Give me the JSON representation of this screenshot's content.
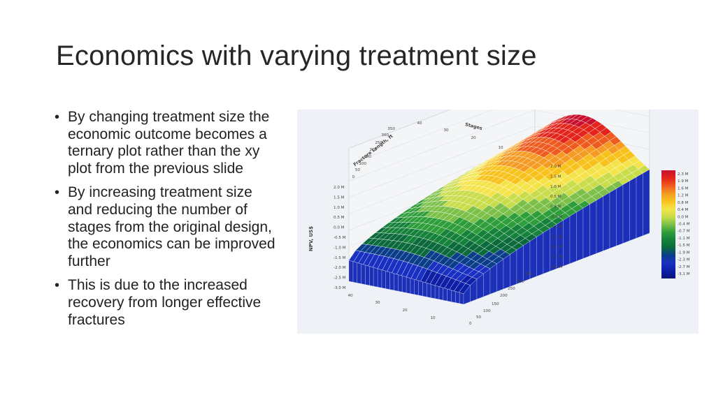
{
  "slide": {
    "title": "Economics with varying treatment size",
    "bullets": [
      "By changing treatment size the economic outcome becomes a ternary plot rather than the xy plot from the previous slide",
      "By increasing treatment size and reducing the number of stages from the original design, the economics can be improved further",
      "This is due to the increased recovery from longer effective fractures"
    ]
  },
  "chart_data": {
    "type": "surface-3d",
    "axes": {
      "stages": {
        "label": "Stages",
        "ticks": [
          "40",
          "30",
          "20",
          "10"
        ]
      },
      "fracture_length": {
        "label": "Fracture Length, ft",
        "ticks": [
          "0",
          "50",
          "100",
          "150",
          "200",
          "250",
          "300",
          "350"
        ]
      },
      "npv": {
        "label": "NPV, US$",
        "ticks": [
          "2.0 M",
          "1.5 M",
          "1.0 M",
          "0.5 M",
          "0.0 M",
          "-0.5 M",
          "-1.0 M",
          "-1.5 M",
          "-2.0 M",
          "-2.5 M",
          "-3.0 M"
        ]
      },
      "right_panel_ticks": [
        "2.0 M",
        "1.5 M",
        "1.0 M",
        "0.5 M",
        "0.0 M",
        "-0.5 M",
        "-1.0 M",
        "-1.5 M",
        "-2.0 M",
        "-2.5 M",
        "-3.0 M"
      ],
      "front_stage_ticks": [
        "40",
        "30",
        "20",
        "10"
      ],
      "front_length_ticks": [
        "0",
        "50",
        "100",
        "150",
        "200",
        "250",
        "300",
        "350"
      ]
    },
    "colorbar": {
      "labels": [
        "2.3 M",
        "1.9 M",
        "1.6 M",
        "1.2 M",
        "0.8 M",
        "0.4 M",
        "0.0 M",
        "-0.4 M",
        "-0.7 M",
        "-1.1 M",
        "-1.5 M",
        "-1.9 M",
        "-2.3 M",
        "-2.7 M",
        "-3.1 M"
      ],
      "colors": [
        "#c8102e",
        "#e4241b",
        "#ef5a1e",
        "#f59a23",
        "#f8c21c",
        "#f4e44a",
        "#c9dc4a",
        "#7cc04a",
        "#2f9e3a",
        "#15813a",
        "#0b6a3c",
        "#0a3e8a",
        "#1a30c2",
        "#0c1fa6",
        "#0b147a"
      ]
    },
    "nrange": [
      -3.1,
      2.3
    ],
    "grid": true
  }
}
